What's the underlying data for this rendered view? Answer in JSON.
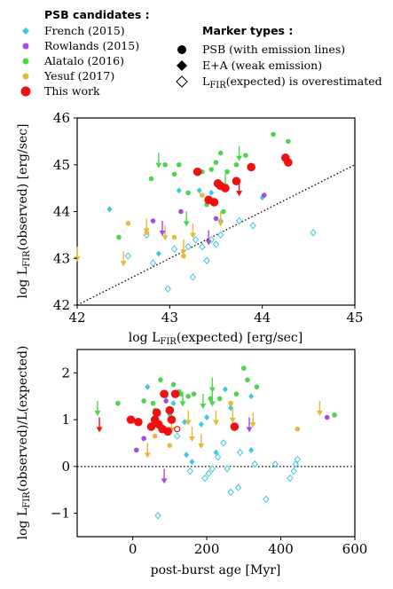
{
  "legend": {
    "candidates_title": "PSB candidates :",
    "candidates": [
      {
        "key": "french",
        "label": "French (2015)"
      },
      {
        "key": "rowlands",
        "label": "Rowlands (2015)"
      },
      {
        "key": "alatalo",
        "label": "Alatalo (2016)"
      },
      {
        "key": "yesuf",
        "label": "Yesuf (2017)"
      },
      {
        "key": "this_work",
        "label": "This work"
      }
    ],
    "marker_title": "Marker types :",
    "markers": [
      {
        "shape": "circle",
        "label": "PSB (with emission lines)"
      },
      {
        "shape": "diamond",
        "label": "E+A (weak emission)"
      },
      {
        "shape": "open-diamond",
        "label_prefix": "L",
        "label_sub": "FIR",
        "label_suffix": "(expected) is overestimated"
      }
    ]
  },
  "colors": {
    "french": "#3ec8e0",
    "rowlands": "#a64be0",
    "alatalo": "#4ad64a",
    "yesuf": "#e8b838",
    "this_work": "#ee1111"
  },
  "chart_data": [
    {
      "type": "scatter",
      "xlabel": {
        "prefix": "log L",
        "sub": "FIR",
        "suffix": "(expected) [erg/sec]"
      },
      "ylabel": {
        "prefix": "log L",
        "sub": "FIR",
        "suffix": "(observed) [erg/sec]"
      },
      "xlim": [
        42,
        45
      ],
      "ylim": [
        42,
        46
      ],
      "xticks": [
        42,
        43,
        44,
        45
      ],
      "yticks": [
        42,
        43,
        44,
        45,
        46
      ],
      "reference_line": {
        "style": "dotted",
        "points": [
          [
            42,
            42
          ],
          [
            45,
            45
          ]
        ]
      },
      "series": [
        {
          "key": "french",
          "points": [
            {
              "x": 42.35,
              "y": 44.05,
              "m": "d"
            },
            {
              "x": 43.1,
              "y": 44.45,
              "m": "d"
            },
            {
              "x": 43.32,
              "y": 44.45,
              "m": "d"
            },
            {
              "x": 43.45,
              "y": 44.4,
              "m": "d"
            },
            {
              "x": 43.55,
              "y": 43.8,
              "m": "d"
            },
            {
              "x": 42.88,
              "y": 43.1,
              "m": "d"
            },
            {
              "x": 44.0,
              "y": 44.3,
              "m": "d"
            },
            {
              "x": 42.55,
              "y": 43.05,
              "m": "o"
            },
            {
              "x": 42.75,
              "y": 43.5,
              "m": "o"
            },
            {
              "x": 42.82,
              "y": 42.9,
              "m": "o"
            },
            {
              "x": 42.98,
              "y": 42.35,
              "m": "o"
            },
            {
              "x": 43.05,
              "y": 43.2,
              "m": "o"
            },
            {
              "x": 43.2,
              "y": 43.25,
              "m": "o"
            },
            {
              "x": 43.25,
              "y": 42.6,
              "m": "o"
            },
            {
              "x": 43.28,
              "y": 43.4,
              "m": "o"
            },
            {
              "x": 43.35,
              "y": 43.25,
              "m": "o"
            },
            {
              "x": 43.4,
              "y": 42.95,
              "m": "o"
            },
            {
              "x": 43.45,
              "y": 43.4,
              "m": "o"
            },
            {
              "x": 43.5,
              "y": 43.3,
              "m": "o"
            },
            {
              "x": 43.55,
              "y": 43.5,
              "m": "o"
            },
            {
              "x": 43.75,
              "y": 43.8,
              "m": "o"
            },
            {
              "x": 43.9,
              "y": 43.7,
              "m": "o"
            },
            {
              "x": 44.55,
              "y": 43.55,
              "m": "o"
            }
          ]
        },
        {
          "key": "rowlands",
          "points": [
            {
              "x": 42.82,
              "y": 43.8,
              "m": "c"
            },
            {
              "x": 43.12,
              "y": 44.0,
              "m": "c"
            },
            {
              "x": 43.5,
              "y": 43.85,
              "m": "c"
            },
            {
              "x": 44.02,
              "y": 44.35,
              "m": "c"
            },
            {
              "x": 43.42,
              "y": 43.45,
              "m": "u"
            },
            {
              "x": 42.92,
              "y": 43.65,
              "m": "u"
            }
          ]
        },
        {
          "key": "alatalo",
          "points": [
            {
              "x": 42.45,
              "y": 43.45,
              "m": "c"
            },
            {
              "x": 42.8,
              "y": 44.7,
              "m": "c"
            },
            {
              "x": 42.95,
              "y": 45.0,
              "m": "c"
            },
            {
              "x": 43.05,
              "y": 44.8,
              "m": "c"
            },
            {
              "x": 43.1,
              "y": 45.0,
              "m": "c"
            },
            {
              "x": 43.2,
              "y": 44.4,
              "m": "c"
            },
            {
              "x": 43.35,
              "y": 44.85,
              "m": "c"
            },
            {
              "x": 43.45,
              "y": 44.9,
              "m": "c"
            },
            {
              "x": 43.5,
              "y": 45.05,
              "m": "c"
            },
            {
              "x": 43.55,
              "y": 45.25,
              "m": "c"
            },
            {
              "x": 43.62,
              "y": 44.85,
              "m": "c"
            },
            {
              "x": 43.72,
              "y": 45.0,
              "m": "c"
            },
            {
              "x": 43.82,
              "y": 45.2,
              "m": "c"
            },
            {
              "x": 43.4,
              "y": 44.15,
              "m": "c"
            },
            {
              "x": 43.58,
              "y": 44.0,
              "m": "c"
            },
            {
              "x": 44.12,
              "y": 45.65,
              "m": "c"
            },
            {
              "x": 44.28,
              "y": 45.5,
              "m": "c"
            },
            {
              "x": 42.88,
              "y": 45.1,
              "m": "u"
            },
            {
              "x": 43.6,
              "y": 44.65,
              "m": "u"
            },
            {
              "x": 43.18,
              "y": 43.85,
              "m": "u"
            },
            {
              "x": 43.75,
              "y": 45.25,
              "m": "u"
            }
          ]
        },
        {
          "key": "yesuf",
          "points": [
            {
              "x": 42.55,
              "y": 43.75,
              "m": "c"
            },
            {
              "x": 42.75,
              "y": 43.55,
              "m": "c"
            },
            {
              "x": 43.05,
              "y": 43.45,
              "m": "c"
            },
            {
              "x": 43.15,
              "y": 43.05,
              "m": "c"
            },
            {
              "x": 43.35,
              "y": 44.35,
              "m": "c"
            },
            {
              "x": 42.0,
              "y": 43.1,
              "m": "u"
            },
            {
              "x": 42.5,
              "y": 43.0,
              "m": "u"
            },
            {
              "x": 42.75,
              "y": 43.7,
              "m": "u"
            },
            {
              "x": 42.95,
              "y": 43.55,
              "m": "u"
            },
            {
              "x": 43.15,
              "y": 43.25,
              "m": "u"
            },
            {
              "x": 43.25,
              "y": 43.6,
              "m": "u"
            },
            {
              "x": 43.55,
              "y": 43.85,
              "m": "u"
            }
          ]
        },
        {
          "key": "this_work",
          "points": [
            {
              "x": 43.3,
              "y": 44.85,
              "m": "c"
            },
            {
              "x": 43.42,
              "y": 44.25,
              "m": "c"
            },
            {
              "x": 43.48,
              "y": 44.2,
              "m": "c"
            },
            {
              "x": 43.52,
              "y": 44.6,
              "m": "c"
            },
            {
              "x": 43.55,
              "y": 44.55,
              "m": "c"
            },
            {
              "x": 43.6,
              "y": 44.5,
              "m": "c"
            },
            {
              "x": 43.72,
              "y": 44.65,
              "m": "c"
            },
            {
              "x": 43.88,
              "y": 44.95,
              "m": "c"
            },
            {
              "x": 44.25,
              "y": 45.15,
              "m": "c"
            },
            {
              "x": 44.28,
              "y": 45.05,
              "m": "c"
            },
            {
              "x": 43.75,
              "y": 44.5,
              "m": "u"
            }
          ]
        }
      ]
    },
    {
      "type": "scatter",
      "xlabel": {
        "text": "post-burst age [Myr]"
      },
      "ylabel": {
        "prefix": "log L",
        "sub": "FIR",
        "suffix": "(observed)/L(expected)"
      },
      "xlim": [
        -150,
        600
      ],
      "ylim": [
        -1.5,
        2.5
      ],
      "xticks": [
        0,
        200,
        400,
        600
      ],
      "yticks": [
        -1,
        0,
        1,
        2
      ],
      "reference_line": {
        "style": "dotted",
        "points": [
          [
            -150,
            0
          ],
          [
            600,
            0
          ]
        ]
      },
      "series": [
        {
          "key": "french",
          "points": [
            {
              "x": 40,
              "y": 1.7,
              "m": "d"
            },
            {
              "x": 90,
              "y": 1.5,
              "m": "d"
            },
            {
              "x": 100,
              "y": 1.1,
              "m": "d"
            },
            {
              "x": 110,
              "y": 1.35,
              "m": "d"
            },
            {
              "x": 140,
              "y": 0.95,
              "m": "d"
            },
            {
              "x": 145,
              "y": 0.25,
              "m": "d"
            },
            {
              "x": 160,
              "y": 0.1,
              "m": "d"
            },
            {
              "x": 185,
              "y": 0.9,
              "m": "d"
            },
            {
              "x": 200,
              "y": 1.05,
              "m": "d"
            },
            {
              "x": 225,
              "y": 0.3,
              "m": "d"
            },
            {
              "x": 250,
              "y": 1.65,
              "m": "d"
            },
            {
              "x": 265,
              "y": 1.25,
              "m": "d"
            },
            {
              "x": 320,
              "y": 1.5,
              "m": "d"
            },
            {
              "x": 320,
              "y": 0.35,
              "m": "d"
            },
            {
              "x": 68,
              "y": -1.05,
              "m": "o"
            },
            {
              "x": 120,
              "y": 0.65,
              "m": "o"
            },
            {
              "x": 155,
              "y": -0.1,
              "m": "o"
            },
            {
              "x": 195,
              "y": -0.25,
              "m": "o"
            },
            {
              "x": 205,
              "y": -0.15,
              "m": "o"
            },
            {
              "x": 215,
              "y": -0.05,
              "m": "o"
            },
            {
              "x": 230,
              "y": 0.2,
              "m": "o"
            },
            {
              "x": 245,
              "y": 0.5,
              "m": "o"
            },
            {
              "x": 255,
              "y": -0.05,
              "m": "o"
            },
            {
              "x": 265,
              "y": -0.55,
              "m": "o"
            },
            {
              "x": 285,
              "y": -0.45,
              "m": "o"
            },
            {
              "x": 290,
              "y": 0.3,
              "m": "o"
            },
            {
              "x": 330,
              "y": 0.05,
              "m": "o"
            },
            {
              "x": 360,
              "y": -0.7,
              "m": "o"
            },
            {
              "x": 385,
              "y": 0.05,
              "m": "o"
            },
            {
              "x": 425,
              "y": -0.25,
              "m": "o"
            },
            {
              "x": 435,
              "y": -0.1,
              "m": "o"
            },
            {
              "x": 445,
              "y": 0.15,
              "m": "o"
            },
            {
              "x": 440,
              "y": 0.05,
              "m": "o"
            }
          ]
        },
        {
          "key": "rowlands",
          "points": [
            {
              "x": 10,
              "y": 0.35,
              "m": "c"
            },
            {
              "x": 30,
              "y": 0.6,
              "m": "c"
            },
            {
              "x": 90,
              "y": 1.4,
              "m": "c"
            },
            {
              "x": 525,
              "y": 1.05,
              "m": "c"
            },
            {
              "x": 85,
              "y": -0.2,
              "m": "u"
            },
            {
              "x": 315,
              "y": 0.9,
              "m": "u"
            }
          ]
        },
        {
          "key": "alatalo",
          "points": [
            {
              "x": -40,
              "y": 1.35,
              "m": "c"
            },
            {
              "x": 30,
              "y": 1.4,
              "m": "c"
            },
            {
              "x": 55,
              "y": 1.35,
              "m": "c"
            },
            {
              "x": 60,
              "y": 1.2,
              "m": "c"
            },
            {
              "x": 75,
              "y": 1.85,
              "m": "c"
            },
            {
              "x": 110,
              "y": 1.75,
              "m": "c"
            },
            {
              "x": 125,
              "y": 1.6,
              "m": "c"
            },
            {
              "x": 130,
              "y": 1.55,
              "m": "c"
            },
            {
              "x": 150,
              "y": 1.5,
              "m": "c"
            },
            {
              "x": 165,
              "y": 1.55,
              "m": "c"
            },
            {
              "x": 210,
              "y": 1.45,
              "m": "c"
            },
            {
              "x": 235,
              "y": 1.45,
              "m": "c"
            },
            {
              "x": 280,
              "y": 1.55,
              "m": "c"
            },
            {
              "x": 300,
              "y": 2.1,
              "m": "c"
            },
            {
              "x": 310,
              "y": 1.85,
              "m": "c"
            },
            {
              "x": 335,
              "y": 1.7,
              "m": "c"
            },
            {
              "x": 545,
              "y": 1.1,
              "m": "c"
            },
            {
              "x": -95,
              "y": 1.25,
              "m": "u"
            },
            {
              "x": 135,
              "y": 1.45,
              "m": "u"
            },
            {
              "x": 190,
              "y": 1.4,
              "m": "u"
            },
            {
              "x": 215,
              "y": 1.45,
              "m": "u"
            },
            {
              "x": 215,
              "y": 1.75,
              "m": "u"
            }
          ]
        },
        {
          "key": "yesuf",
          "points": [
            {
              "x": 60,
              "y": 0.65,
              "m": "c"
            },
            {
              "x": 100,
              "y": 0.45,
              "m": "c"
            },
            {
              "x": 265,
              "y": 1.35,
              "m": "c"
            },
            {
              "x": 445,
              "y": 0.8,
              "m": "c"
            },
            {
              "x": 40,
              "y": 0.35,
              "m": "u"
            },
            {
              "x": 105,
              "y": 0.9,
              "m": "u"
            },
            {
              "x": 150,
              "y": 1.05,
              "m": "u"
            },
            {
              "x": 160,
              "y": 0.7,
              "m": "u"
            },
            {
              "x": 185,
              "y": 0.55,
              "m": "u"
            },
            {
              "x": 225,
              "y": 1.05,
              "m": "u"
            },
            {
              "x": 325,
              "y": 1.0,
              "m": "u"
            },
            {
              "x": 505,
              "y": 1.25,
              "m": "u"
            },
            {
              "x": 270,
              "y": 1.1,
              "m": "u"
            }
          ]
        },
        {
          "key": "this_work",
          "points": [
            {
              "x": -5,
              "y": 1.0,
              "m": "c"
            },
            {
              "x": 15,
              "y": 0.95,
              "m": "c"
            },
            {
              "x": 50,
              "y": 0.85,
              "m": "c"
            },
            {
              "x": 60,
              "y": 1.0,
              "m": "c"
            },
            {
              "x": 65,
              "y": 1.15,
              "m": "c"
            },
            {
              "x": 70,
              "y": 0.9,
              "m": "c"
            },
            {
              "x": 80,
              "y": 0.8,
              "m": "c"
            },
            {
              "x": 85,
              "y": 1.55,
              "m": "c"
            },
            {
              "x": 95,
              "y": 0.75,
              "m": "c"
            },
            {
              "x": 100,
              "y": 1.2,
              "m": "c"
            },
            {
              "x": 105,
              "y": 1.0,
              "m": "c"
            },
            {
              "x": 115,
              "y": 1.55,
              "m": "c"
            },
            {
              "x": 275,
              "y": 0.85,
              "m": "c"
            },
            {
              "x": -90,
              "y": 0.9,
              "m": "u"
            },
            {
              "x": 120,
              "y": 0.8,
              "m": "o"
            }
          ]
        }
      ]
    }
  ]
}
